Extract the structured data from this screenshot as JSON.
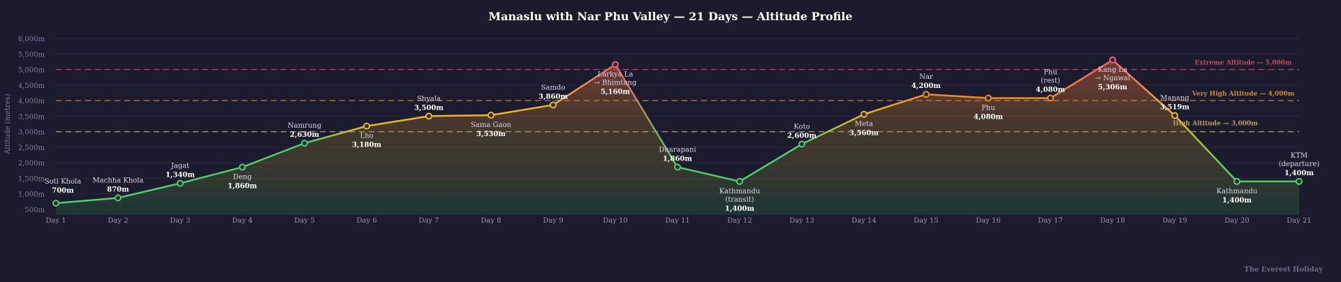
{
  "chart_data": {
    "type": "line",
    "title": "Manaslu with Nar Phu Valley — 21 Days — Altitude Profile",
    "ylabel": "Altitude (metres)",
    "xlabel": "",
    "ylim": [
      500,
      6000
    ],
    "yticks": [
      500,
      1000,
      1500,
      2000,
      2500,
      3000,
      3500,
      4000,
      4500,
      5000,
      5500,
      6000
    ],
    "ytick_labels": [
      "500m",
      "1,000m",
      "1,500m",
      "2,000m",
      "2,500m",
      "3,000m",
      "3,500m",
      "4,000m",
      "4,500m",
      "5,000m",
      "5,500m",
      "6,000m"
    ],
    "grid": true,
    "categories": [
      "Day 1",
      "Day 2",
      "Day 3",
      "Day 4",
      "Day 5",
      "Day 6",
      "Day 7",
      "Day 8",
      "Day 9",
      "Day 10",
      "Day 11",
      "Day 12",
      "Day 13",
      "Day 14",
      "Day 15",
      "Day 16",
      "Day 17",
      "Day 18",
      "Day 19",
      "Day 20",
      "Day 21"
    ],
    "values": [
      700,
      870,
      1340,
      1860,
      2630,
      3180,
      3500,
      3530,
      3860,
      5160,
      1860,
      1400,
      2600,
      3560,
      4200,
      4080,
      4080,
      5306,
      3519,
      1400,
      1400
    ],
    "point_labels": [
      {
        "place": [
          "Soti Khola"
        ],
        "alt": "700m"
      },
      {
        "place": [
          "Machha Khola"
        ],
        "alt": "870m"
      },
      {
        "place": [
          "Jagat"
        ],
        "alt": "1,340m"
      },
      {
        "place": [
          "Deng"
        ],
        "alt": "1,860m"
      },
      {
        "place": [
          "Namrung"
        ],
        "alt": "2,630m"
      },
      {
        "place": [
          "Lho"
        ],
        "alt": "3,180m"
      },
      {
        "place": [
          "Shyala"
        ],
        "alt": "3,500m"
      },
      {
        "place": [
          "Sama Gaon"
        ],
        "alt": "3,530m"
      },
      {
        "place": [
          "Samdo"
        ],
        "alt": "3,860m"
      },
      {
        "place": [
          "Larkya La",
          "→ Bhimtang"
        ],
        "alt": "5,160m"
      },
      {
        "place": [
          "Dharapani"
        ],
        "alt": "1,860m"
      },
      {
        "place": [
          "Kathmandu",
          "(transit)"
        ],
        "alt": "1,400m"
      },
      {
        "place": [
          "Koto"
        ],
        "alt": "2,600m"
      },
      {
        "place": [
          "Meta"
        ],
        "alt": "3,560m"
      },
      {
        "place": [
          "Nar"
        ],
        "alt": "4,200m"
      },
      {
        "place": [
          "Phu"
        ],
        "alt": "4,080m"
      },
      {
        "place": [
          "Phu",
          "(rest)"
        ],
        "alt": "4,080m"
      },
      {
        "place": [
          "Kang La",
          "→ Ngawal"
        ],
        "alt": "5,306m"
      },
      {
        "place": [
          "Manang"
        ],
        "alt": "3,519m"
      },
      {
        "place": [
          "Kathmandu"
        ],
        "alt": "1,400m"
      },
      {
        "place": [
          "KTM",
          "(departure)"
        ],
        "alt": "1,400m"
      }
    ],
    "reference_lines": [
      {
        "value": 5000,
        "label": "Extreme Altitude — 5,000m",
        "color": "#c8485a"
      },
      {
        "value": 4000,
        "label": "Very High Altitude — 4,000m",
        "color": "#c98a2e"
      },
      {
        "value": 3000,
        "label": "High Altitude — 3,000m",
        "color": "#b8a060"
      }
    ],
    "colors": {
      "low": "#4cd06a",
      "mid": "#e8b82a",
      "high": "#f08a2a",
      "extreme": "#f06070",
      "background": "#1c1b2e"
    }
  },
  "credit": "The Everest Holiday"
}
